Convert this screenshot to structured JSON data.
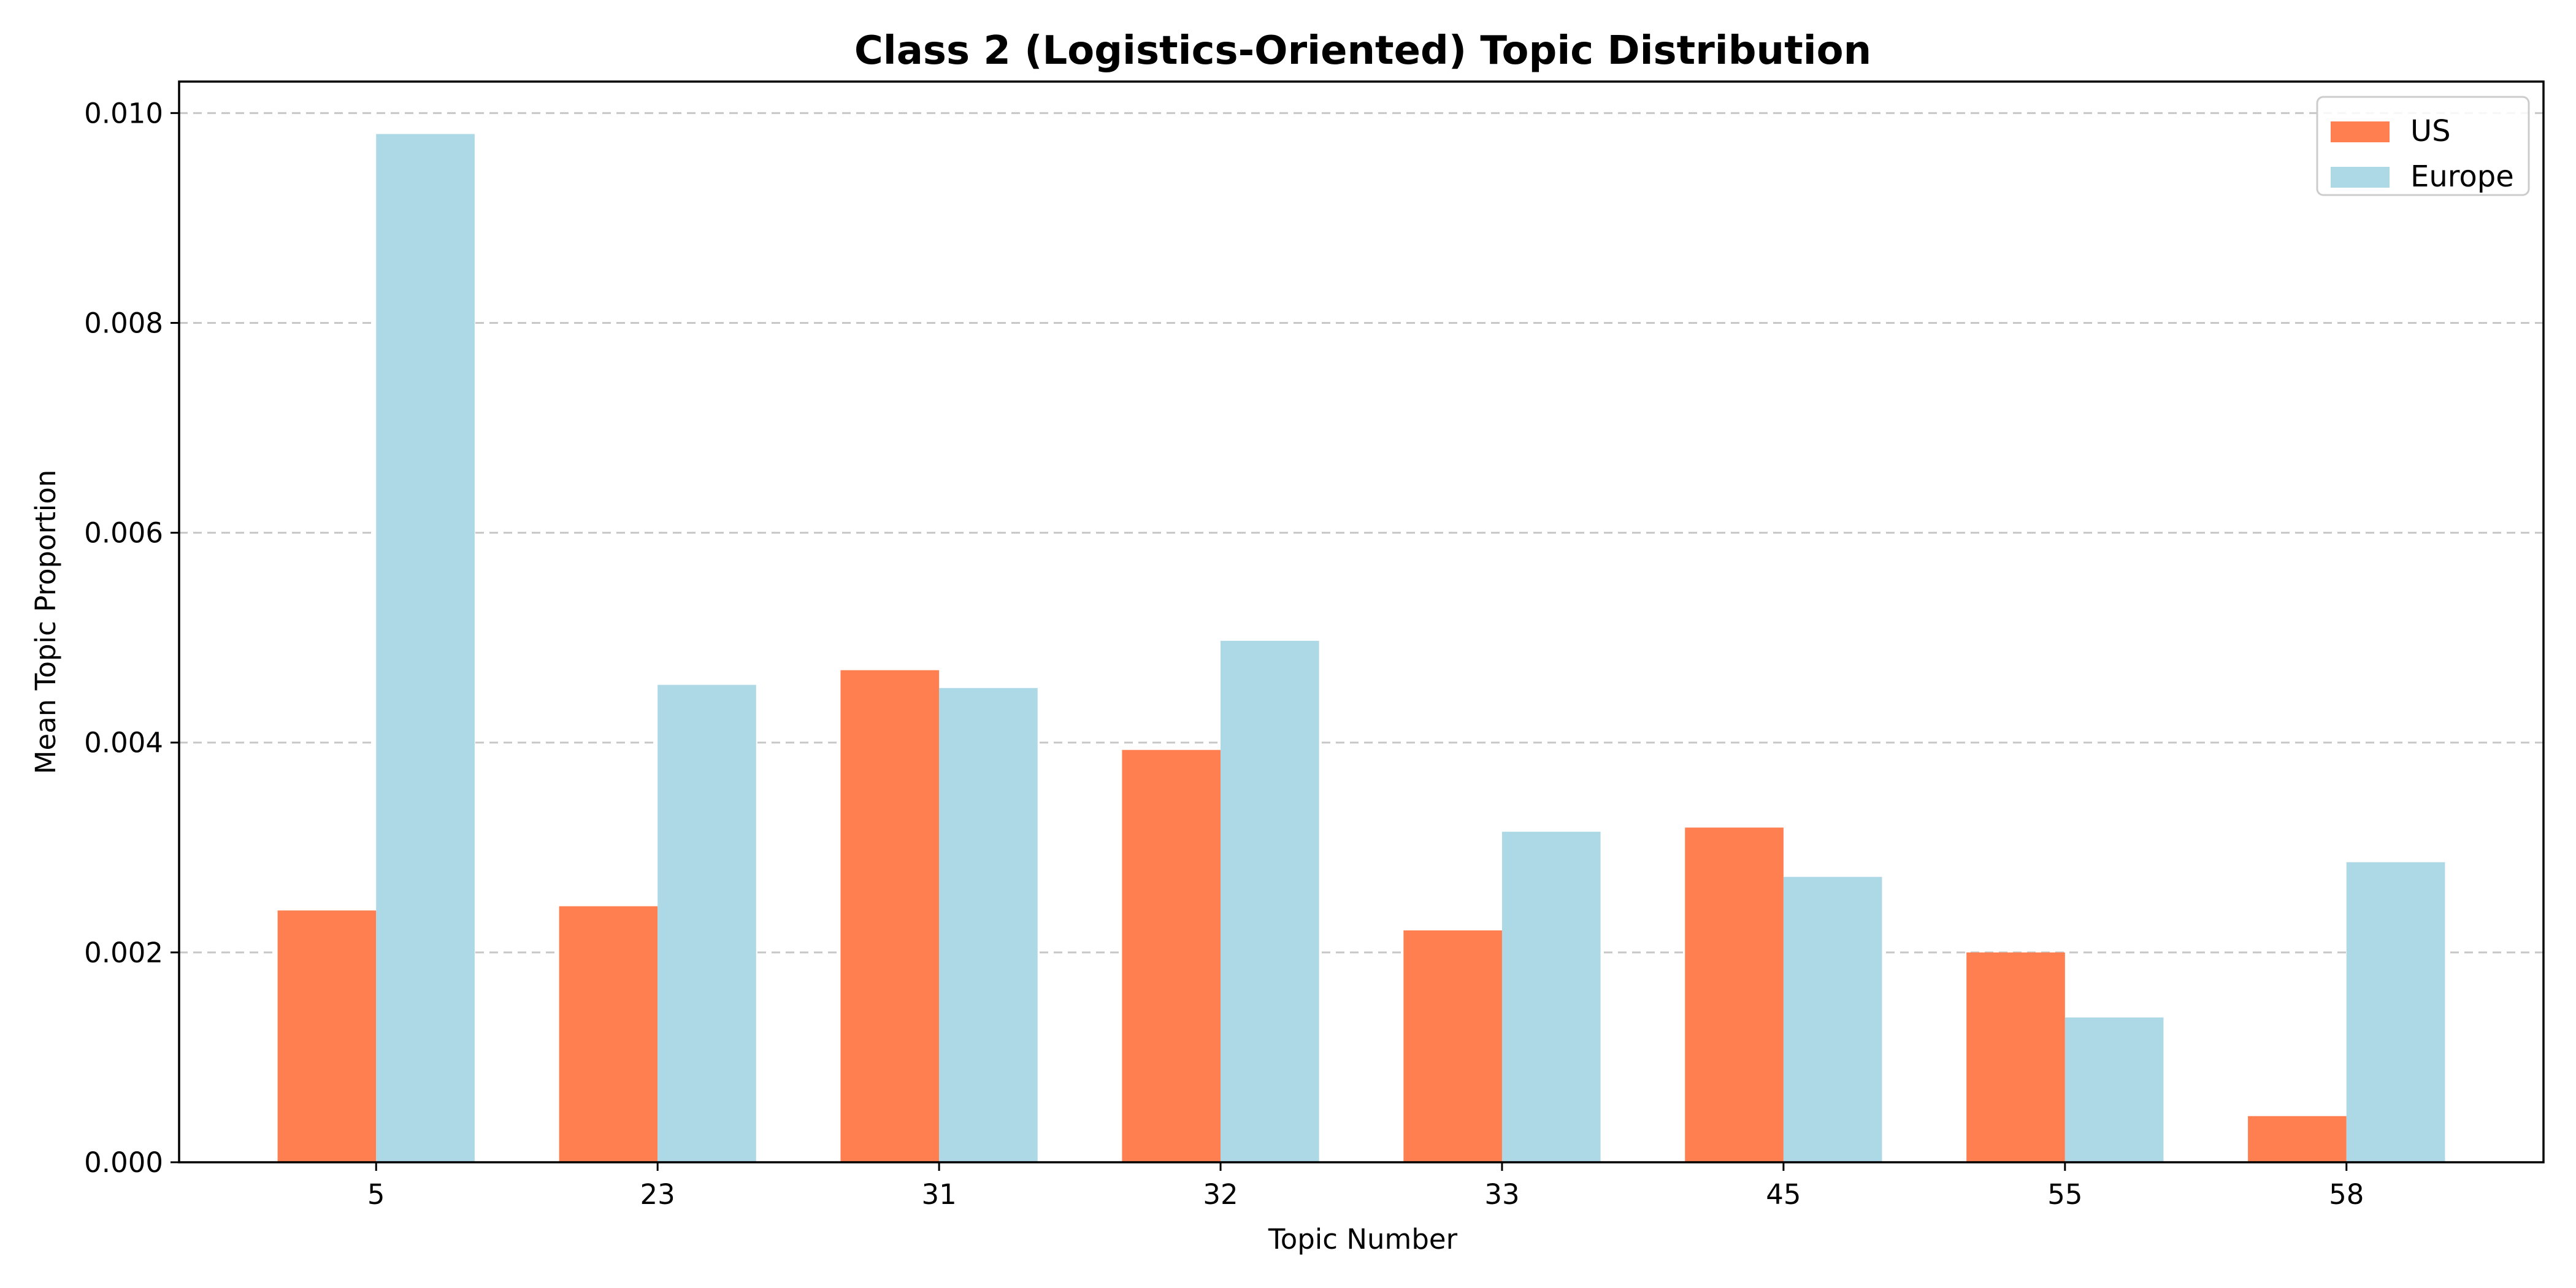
{
  "chart_data": {
    "type": "bar",
    "title": "Class 2 (Logistics-Oriented) Topic Distribution",
    "xlabel": "Topic Number",
    "ylabel": "Mean Topic Proportion",
    "categories": [
      "5",
      "23",
      "31",
      "32",
      "33",
      "45",
      "55",
      "58"
    ],
    "series": [
      {
        "name": "US",
        "color": "#ff7f50",
        "values": [
          0.0024,
          0.00244,
          0.00469,
          0.00393,
          0.00221,
          0.00319,
          0.002,
          0.00044
        ]
      },
      {
        "name": "Europe",
        "color": "#add8e6",
        "values": [
          0.0098,
          0.00455,
          0.00452,
          0.00497,
          0.00315,
          0.00272,
          0.00138,
          0.00286
        ]
      }
    ],
    "ylim": [
      0,
      0.0103
    ],
    "yticks": [
      0,
      0.002,
      0.004,
      0.006,
      0.008,
      0.01
    ],
    "ytick_labels": [
      "0.000",
      "0.002",
      "0.004",
      "0.006",
      "0.008",
      "0.010"
    ],
    "grid": "y-dashed",
    "legend": "top-right"
  }
}
